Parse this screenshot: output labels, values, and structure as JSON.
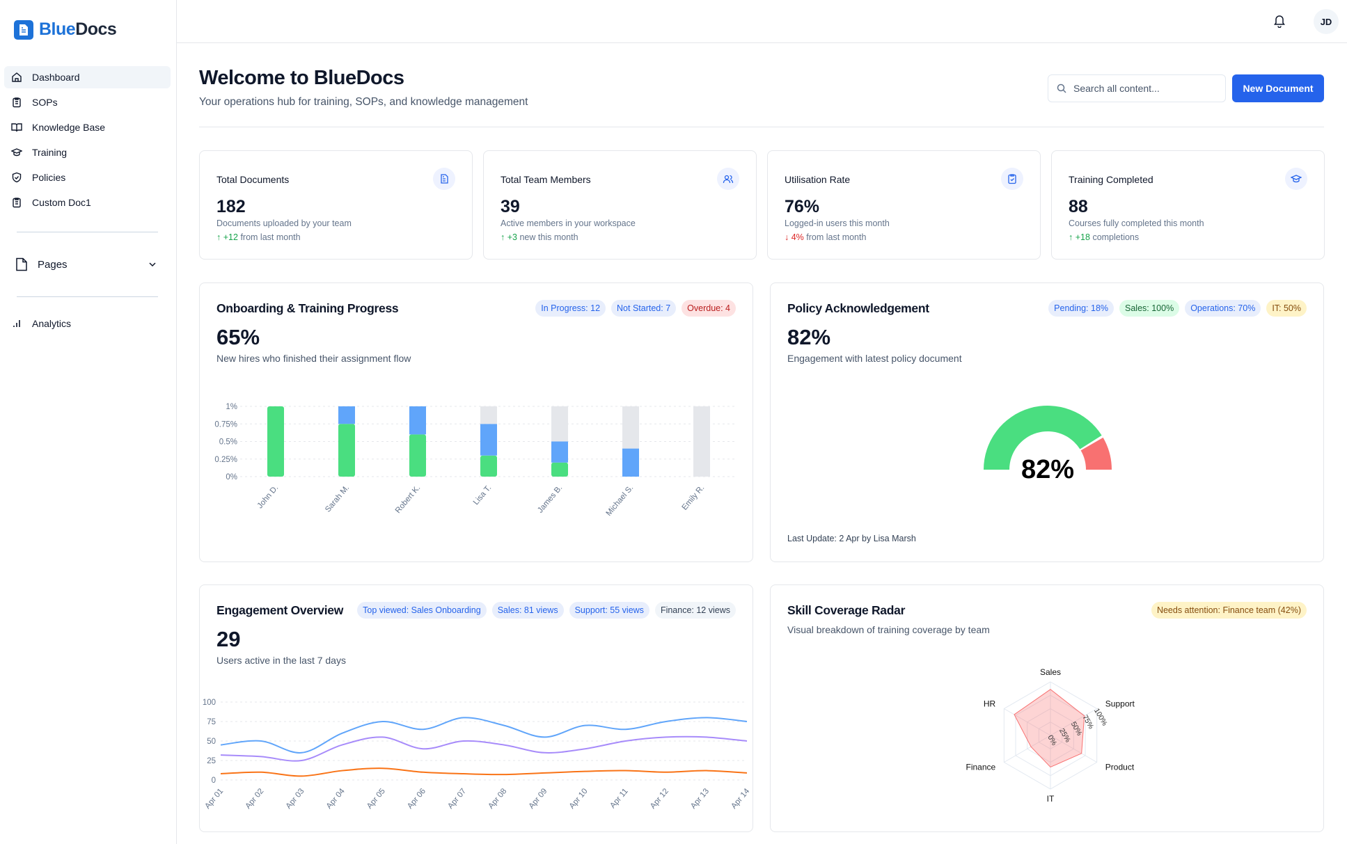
{
  "brand": {
    "part1": "Blue",
    "part2": "Docs"
  },
  "sidebar": {
    "items": [
      {
        "label": "Dashboard",
        "icon": "home-icon"
      },
      {
        "label": "SOPs",
        "icon": "clipboard-icon"
      },
      {
        "label": "Knowledge Base",
        "icon": "book-icon"
      },
      {
        "label": "Training",
        "icon": "graduation-cap-icon"
      },
      {
        "label": "Policies",
        "icon": "shield-icon"
      },
      {
        "label": "Custom Doc1",
        "icon": "clipboard-icon"
      }
    ],
    "pages_label": "Pages",
    "analytics_label": "Analytics"
  },
  "header": {
    "avatar": "JD"
  },
  "main": {
    "title": "Welcome to BlueDocs",
    "subtitle": "Your operations hub for training, SOPs, and knowledge management",
    "search_placeholder": "Search all content...",
    "new_button": "New Document"
  },
  "stats": [
    {
      "title": "Total Documents",
      "value": "182",
      "desc": "Documents uploaded by your team",
      "change": "+12",
      "change_suffix": "from last month",
      "trend": "up"
    },
    {
      "title": "Total Team Members",
      "value": "39",
      "desc": "Active members in your workspace",
      "change": "+3",
      "change_suffix": "new this month",
      "trend": "up"
    },
    {
      "title": "Utilisation Rate",
      "value": "76%",
      "desc": "Logged-in users this month",
      "change": "4%",
      "change_suffix": "from last month",
      "trend": "down"
    },
    {
      "title": "Training Completed",
      "value": "88",
      "desc": "Courses fully completed this month",
      "change": "+18",
      "change_suffix": "completions",
      "trend": "up"
    }
  ],
  "onboarding": {
    "title": "Onboarding & Training Progress",
    "badges": [
      "In Progress: 12",
      "Not Started: 7",
      "Overdue: 4"
    ],
    "value": "65%",
    "subtitle": "New hires who finished their assignment flow"
  },
  "policy": {
    "title": "Policy Acknowledgement",
    "badges": [
      "Pending: 18%",
      "Sales: 100%",
      "Operations: 70%",
      "IT: 50%"
    ],
    "value": "82%",
    "subtitle": "Engagement with latest policy document",
    "gauge_label": "82%",
    "footer": "Last Update: 2 Apr by Lisa Marsh"
  },
  "engagement": {
    "title": "Engagement Overview",
    "badges": [
      "Top viewed: Sales Onboarding",
      "Sales: 81 views",
      "Support: 55 views",
      "Finance: 12 views"
    ],
    "value": "29",
    "subtitle": "Users active in the last 7 days"
  },
  "skills": {
    "title": "Skill Coverage Radar",
    "badge": "Needs attention: Finance team (42%)",
    "subtitle": "Visual breakdown of training coverage by team"
  },
  "chart_data": [
    {
      "type": "bar",
      "stacked": true,
      "categories": [
        "John D.",
        "Sarah M.",
        "Robert K.",
        "Lisa T.",
        "James B.",
        "Michael S.",
        "Emily R."
      ],
      "series": [
        {
          "values": [
            1,
            0.75,
            0.6,
            0.3,
            0.2,
            0,
            0
          ],
          "color": "#4ade80"
        },
        {
          "values": [
            0,
            0.25,
            0.4,
            0.45,
            0.3,
            0.4,
            0
          ],
          "color": "#60a5fa"
        },
        {
          "values": [
            0,
            0,
            0,
            0.25,
            0.5,
            0.6,
            1
          ],
          "color": "#e5e7eb"
        }
      ],
      "yticks": [
        "0%",
        "0.25%",
        "0.5%",
        "0.75%",
        "1%"
      ],
      "ylim": [
        0,
        1
      ],
      "grid": true
    },
    {
      "type": "pie",
      "subtype": "gauge",
      "values": [
        82,
        18
      ],
      "colors": [
        "#4ade80",
        "#f87171"
      ]
    },
    {
      "type": "line",
      "x": [
        "Apr 01",
        "Apr 02",
        "Apr 03",
        "Apr 04",
        "Apr 05",
        "Apr 06",
        "Apr 07",
        "Apr 08",
        "Apr 09",
        "Apr 10",
        "Apr 11",
        "Apr 12",
        "Apr 13",
        "Apr 14"
      ],
      "series": [
        {
          "values": [
            45,
            50,
            35,
            60,
            75,
            65,
            80,
            70,
            55,
            70,
            65,
            75,
            80,
            75
          ],
          "color": "#60a5fa"
        },
        {
          "values": [
            32,
            30,
            25,
            45,
            55,
            40,
            50,
            45,
            35,
            40,
            50,
            55,
            55,
            50
          ],
          "color": "#a78bfa"
        },
        {
          "values": [
            8,
            10,
            5,
            12,
            15,
            10,
            8,
            7,
            9,
            11,
            12,
            10,
            12,
            9
          ],
          "color": "#f97316"
        }
      ],
      "yticks": [
        "0",
        "25",
        "50",
        "75",
        "100"
      ],
      "ylim": [
        0,
        100
      ],
      "grid": true
    },
    {
      "type": "radar",
      "categories": [
        "Sales",
        "Support",
        "Product",
        "IT",
        "Finance",
        "HR"
      ],
      "values": [
        86,
        73,
        67,
        59,
        42,
        78
      ],
      "rticks": [
        "0%",
        "25%",
        "50%",
        "75%",
        "100%"
      ],
      "color": "#f87171"
    }
  ]
}
